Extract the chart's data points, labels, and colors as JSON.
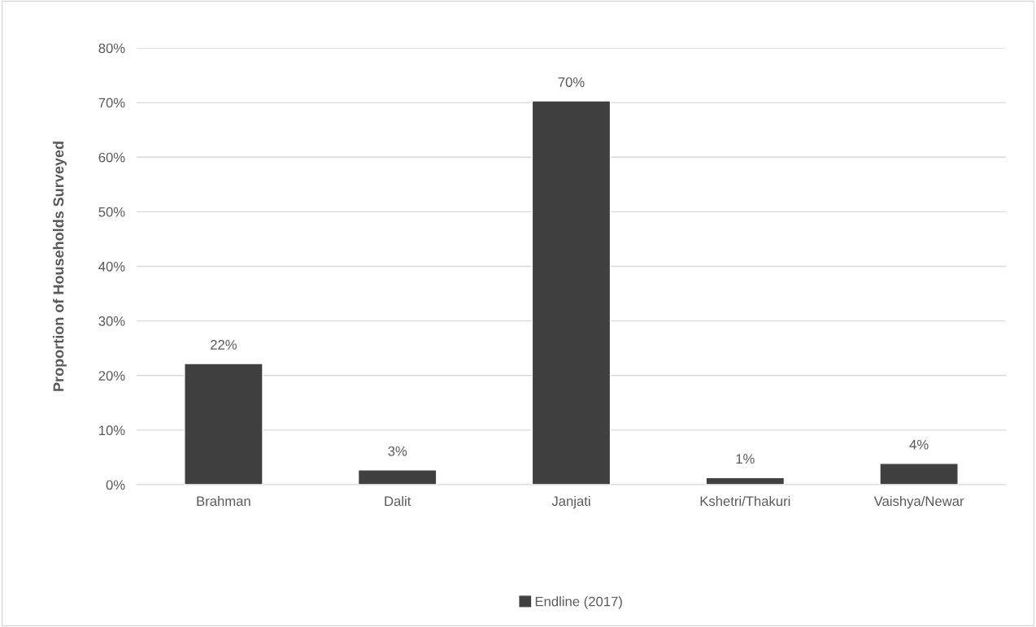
{
  "chart_data": {
    "type": "bar",
    "ylabel": "Proportion of Households Surveyed",
    "categories": [
      "Brahman",
      "Dalit",
      "Janjati",
      "Kshetri/Thakuri",
      "Vaishya/Newar"
    ],
    "series": [
      {
        "name": "Endline (2017)",
        "color": "#404040",
        "values": [
          22.2,
          2.7,
          70.3,
          1.3,
          3.9
        ],
        "value_labels": [
          "22%",
          "3%",
          "70%",
          "1%",
          "4%"
        ]
      }
    ],
    "ylim": [
      0,
      80
    ],
    "yticks": [
      {
        "value": 0,
        "label": "0%"
      },
      {
        "value": 10,
        "label": "10%"
      },
      {
        "value": 20,
        "label": "20%"
      },
      {
        "value": 30,
        "label": "30%"
      },
      {
        "value": 40,
        "label": "40%"
      },
      {
        "value": 50,
        "label": "50%"
      },
      {
        "value": 60,
        "label": "60%"
      },
      {
        "value": 70,
        "label": "70%"
      },
      {
        "value": 80,
        "label": "80%"
      }
    ],
    "grid": "y",
    "legend": "bottom"
  }
}
